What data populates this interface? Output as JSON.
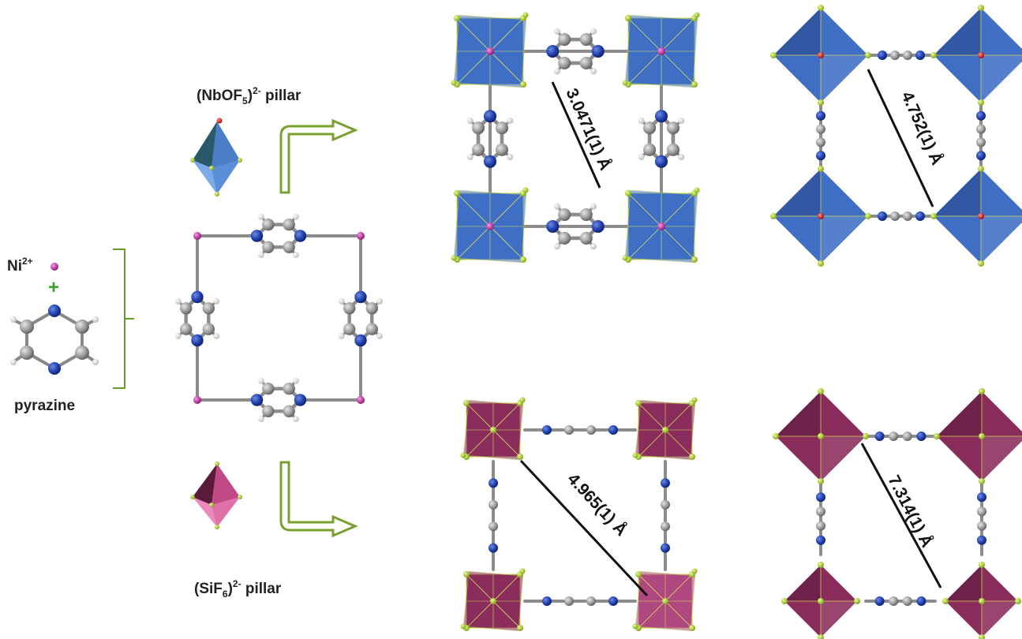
{
  "labels": {
    "nb_pillar": {
      "prefix": "(NbOF",
      "sub": "5",
      "close": ")",
      "sup": "2-",
      "suffix": " pillar"
    },
    "si_pillar": {
      "prefix": "(SiF",
      "sub": "6",
      "close": ")",
      "sup": "2-",
      "suffix": " pillar"
    },
    "ni_ion": {
      "base": "Ni",
      "sup": "2+"
    },
    "plus": "+",
    "pyrazine": "pyrazine"
  },
  "distances": {
    "nb_view1": "3.0471(1) Å",
    "nb_view2": "4.752(1) Å",
    "si_view1": "4.965(1) Å",
    "si_view2": "7.314(1) Å"
  },
  "colors": {
    "nickel": "#c040a8",
    "nitrogen": "#2040b0",
    "carbon": "#9a9a9a",
    "hydrogen": "#f0f0f0",
    "fluorine": "#a8d030",
    "oxygen": "#dd1010",
    "nb_polyhedron": "#3f6fc4",
    "si_polyhedron": "#8a2c5c",
    "si_pillar_icon": "#e070a8",
    "arrow": "#7aa030"
  }
}
